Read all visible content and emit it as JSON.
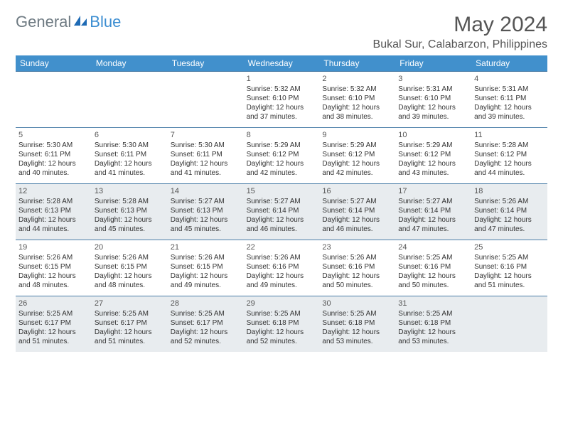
{
  "logo": {
    "part1": "General",
    "part2": "Blue"
  },
  "title": "May 2024",
  "location": "Bukal Sur, Calabarzon, Philippines",
  "colors": {
    "header_bg": "#4190cc",
    "header_text": "#ffffff",
    "row_border": "#4b7ea8",
    "shaded_bg": "#e8ecef",
    "body_text": "#333333",
    "logo_gray": "#6e7a82",
    "logo_blue": "#3b8dd1"
  },
  "day_names": [
    "Sunday",
    "Monday",
    "Tuesday",
    "Wednesday",
    "Thursday",
    "Friday",
    "Saturday"
  ],
  "weeks": [
    {
      "shaded": false,
      "days": [
        {
          "n": "",
          "sunrise": "",
          "sunset": "",
          "daylight": ""
        },
        {
          "n": "",
          "sunrise": "",
          "sunset": "",
          "daylight": ""
        },
        {
          "n": "",
          "sunrise": "",
          "sunset": "",
          "daylight": ""
        },
        {
          "n": "1",
          "sunrise": "Sunrise: 5:32 AM",
          "sunset": "Sunset: 6:10 PM",
          "daylight": "Daylight: 12 hours and 37 minutes."
        },
        {
          "n": "2",
          "sunrise": "Sunrise: 5:32 AM",
          "sunset": "Sunset: 6:10 PM",
          "daylight": "Daylight: 12 hours and 38 minutes."
        },
        {
          "n": "3",
          "sunrise": "Sunrise: 5:31 AM",
          "sunset": "Sunset: 6:10 PM",
          "daylight": "Daylight: 12 hours and 39 minutes."
        },
        {
          "n": "4",
          "sunrise": "Sunrise: 5:31 AM",
          "sunset": "Sunset: 6:11 PM",
          "daylight": "Daylight: 12 hours and 39 minutes."
        }
      ]
    },
    {
      "shaded": false,
      "days": [
        {
          "n": "5",
          "sunrise": "Sunrise: 5:30 AM",
          "sunset": "Sunset: 6:11 PM",
          "daylight": "Daylight: 12 hours and 40 minutes."
        },
        {
          "n": "6",
          "sunrise": "Sunrise: 5:30 AM",
          "sunset": "Sunset: 6:11 PM",
          "daylight": "Daylight: 12 hours and 41 minutes."
        },
        {
          "n": "7",
          "sunrise": "Sunrise: 5:30 AM",
          "sunset": "Sunset: 6:11 PM",
          "daylight": "Daylight: 12 hours and 41 minutes."
        },
        {
          "n": "8",
          "sunrise": "Sunrise: 5:29 AM",
          "sunset": "Sunset: 6:12 PM",
          "daylight": "Daylight: 12 hours and 42 minutes."
        },
        {
          "n": "9",
          "sunrise": "Sunrise: 5:29 AM",
          "sunset": "Sunset: 6:12 PM",
          "daylight": "Daylight: 12 hours and 42 minutes."
        },
        {
          "n": "10",
          "sunrise": "Sunrise: 5:29 AM",
          "sunset": "Sunset: 6:12 PM",
          "daylight": "Daylight: 12 hours and 43 minutes."
        },
        {
          "n": "11",
          "sunrise": "Sunrise: 5:28 AM",
          "sunset": "Sunset: 6:12 PM",
          "daylight": "Daylight: 12 hours and 44 minutes."
        }
      ]
    },
    {
      "shaded": true,
      "days": [
        {
          "n": "12",
          "sunrise": "Sunrise: 5:28 AM",
          "sunset": "Sunset: 6:13 PM",
          "daylight": "Daylight: 12 hours and 44 minutes."
        },
        {
          "n": "13",
          "sunrise": "Sunrise: 5:28 AM",
          "sunset": "Sunset: 6:13 PM",
          "daylight": "Daylight: 12 hours and 45 minutes."
        },
        {
          "n": "14",
          "sunrise": "Sunrise: 5:27 AM",
          "sunset": "Sunset: 6:13 PM",
          "daylight": "Daylight: 12 hours and 45 minutes."
        },
        {
          "n": "15",
          "sunrise": "Sunrise: 5:27 AM",
          "sunset": "Sunset: 6:14 PM",
          "daylight": "Daylight: 12 hours and 46 minutes."
        },
        {
          "n": "16",
          "sunrise": "Sunrise: 5:27 AM",
          "sunset": "Sunset: 6:14 PM",
          "daylight": "Daylight: 12 hours and 46 minutes."
        },
        {
          "n": "17",
          "sunrise": "Sunrise: 5:27 AM",
          "sunset": "Sunset: 6:14 PM",
          "daylight": "Daylight: 12 hours and 47 minutes."
        },
        {
          "n": "18",
          "sunrise": "Sunrise: 5:26 AM",
          "sunset": "Sunset: 6:14 PM",
          "daylight": "Daylight: 12 hours and 47 minutes."
        }
      ]
    },
    {
      "shaded": false,
      "days": [
        {
          "n": "19",
          "sunrise": "Sunrise: 5:26 AM",
          "sunset": "Sunset: 6:15 PM",
          "daylight": "Daylight: 12 hours and 48 minutes."
        },
        {
          "n": "20",
          "sunrise": "Sunrise: 5:26 AM",
          "sunset": "Sunset: 6:15 PM",
          "daylight": "Daylight: 12 hours and 48 minutes."
        },
        {
          "n": "21",
          "sunrise": "Sunrise: 5:26 AM",
          "sunset": "Sunset: 6:15 PM",
          "daylight": "Daylight: 12 hours and 49 minutes."
        },
        {
          "n": "22",
          "sunrise": "Sunrise: 5:26 AM",
          "sunset": "Sunset: 6:16 PM",
          "daylight": "Daylight: 12 hours and 49 minutes."
        },
        {
          "n": "23",
          "sunrise": "Sunrise: 5:26 AM",
          "sunset": "Sunset: 6:16 PM",
          "daylight": "Daylight: 12 hours and 50 minutes."
        },
        {
          "n": "24",
          "sunrise": "Sunrise: 5:25 AM",
          "sunset": "Sunset: 6:16 PM",
          "daylight": "Daylight: 12 hours and 50 minutes."
        },
        {
          "n": "25",
          "sunrise": "Sunrise: 5:25 AM",
          "sunset": "Sunset: 6:16 PM",
          "daylight": "Daylight: 12 hours and 51 minutes."
        }
      ]
    },
    {
      "shaded": true,
      "days": [
        {
          "n": "26",
          "sunrise": "Sunrise: 5:25 AM",
          "sunset": "Sunset: 6:17 PM",
          "daylight": "Daylight: 12 hours and 51 minutes."
        },
        {
          "n": "27",
          "sunrise": "Sunrise: 5:25 AM",
          "sunset": "Sunset: 6:17 PM",
          "daylight": "Daylight: 12 hours and 51 minutes."
        },
        {
          "n": "28",
          "sunrise": "Sunrise: 5:25 AM",
          "sunset": "Sunset: 6:17 PM",
          "daylight": "Daylight: 12 hours and 52 minutes."
        },
        {
          "n": "29",
          "sunrise": "Sunrise: 5:25 AM",
          "sunset": "Sunset: 6:18 PM",
          "daylight": "Daylight: 12 hours and 52 minutes."
        },
        {
          "n": "30",
          "sunrise": "Sunrise: 5:25 AM",
          "sunset": "Sunset: 6:18 PM",
          "daylight": "Daylight: 12 hours and 53 minutes."
        },
        {
          "n": "31",
          "sunrise": "Sunrise: 5:25 AM",
          "sunset": "Sunset: 6:18 PM",
          "daylight": "Daylight: 12 hours and 53 minutes."
        },
        {
          "n": "",
          "sunrise": "",
          "sunset": "",
          "daylight": ""
        }
      ]
    }
  ]
}
